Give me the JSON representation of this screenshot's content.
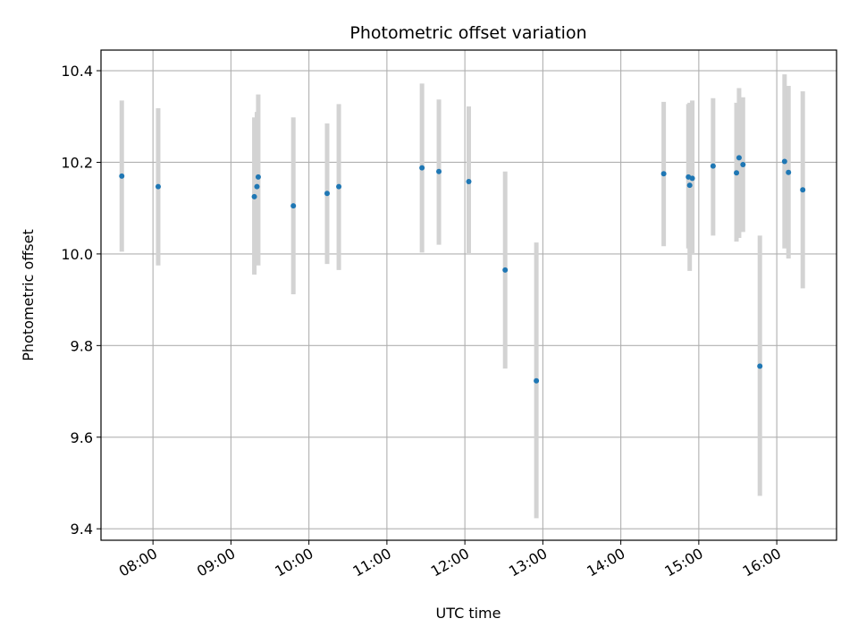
{
  "chart_data": {
    "type": "scatter",
    "title": "Photometric offset variation",
    "xlabel": "UTC time",
    "ylabel": "Photometric offset",
    "x_tick_labels": [
      "08:00",
      "09:00",
      "10:00",
      "11:00",
      "12:00",
      "13:00",
      "14:00",
      "15:00",
      "16:00"
    ],
    "x_ticks": [
      "08:00",
      "09:00",
      "10:00",
      "11:00",
      "12:00",
      "13:00",
      "14:00",
      "15:00",
      "16:00"
    ],
    "y_tick_labels": [
      "9.4",
      "9.6",
      "9.8",
      "10.0",
      "10.2",
      "10.4"
    ],
    "y_ticks": [
      9.4,
      9.6,
      9.8,
      10.0,
      10.2,
      10.4
    ],
    "xlim": [
      "07:20",
      "16:46"
    ],
    "ylim": [
      9.375,
      10.445
    ],
    "grid": true,
    "marker_color": "#1f77b4",
    "errorbar_color": "#d3d3d3",
    "series": [
      {
        "points": [
          {
            "x": "07:36",
            "y": 10.17,
            "ylow": 10.005,
            "yhigh": 10.335
          },
          {
            "x": "08:04",
            "y": 10.147,
            "ylow": 9.975,
            "yhigh": 10.318
          },
          {
            "x": "09:18",
            "y": 10.125,
            "ylow": 9.955,
            "yhigh": 10.298
          },
          {
            "x": "09:20",
            "y": 10.147,
            "ylow": 9.985,
            "yhigh": 10.31
          },
          {
            "x": "09:21",
            "y": 10.168,
            "ylow": 9.975,
            "yhigh": 10.348
          },
          {
            "x": "09:48",
            "y": 10.105,
            "ylow": 9.912,
            "yhigh": 10.298
          },
          {
            "x": "10:14",
            "y": 10.132,
            "ylow": 9.978,
            "yhigh": 10.285
          },
          {
            "x": "10:23",
            "y": 10.147,
            "ylow": 9.965,
            "yhigh": 10.327
          },
          {
            "x": "11:27",
            "y": 10.188,
            "ylow": 10.003,
            "yhigh": 10.372
          },
          {
            "x": "11:40",
            "y": 10.18,
            "ylow": 10.02,
            "yhigh": 10.337
          },
          {
            "x": "12:03",
            "y": 10.158,
            "ylow": 9.998,
            "yhigh": 10.322
          },
          {
            "x": "12:31",
            "y": 9.965,
            "ylow": 9.75,
            "yhigh": 10.18
          },
          {
            "x": "12:55",
            "y": 9.723,
            "ylow": 9.423,
            "yhigh": 10.025
          },
          {
            "x": "14:33",
            "y": 10.175,
            "ylow": 10.017,
            "yhigh": 10.332
          },
          {
            "x": "14:52",
            "y": 10.168,
            "ylow": 10.012,
            "yhigh": 10.327
          },
          {
            "x": "14:53",
            "y": 10.15,
            "ylow": 9.963,
            "yhigh": 10.33
          },
          {
            "x": "14:55",
            "y": 10.165,
            "ylow": 9.998,
            "yhigh": 10.335
          },
          {
            "x": "15:11",
            "y": 10.192,
            "ylow": 10.04,
            "yhigh": 10.34
          },
          {
            "x": "15:29",
            "y": 10.177,
            "ylow": 10.027,
            "yhigh": 10.33
          },
          {
            "x": "15:31",
            "y": 10.21,
            "ylow": 10.035,
            "yhigh": 10.362
          },
          {
            "x": "15:34",
            "y": 10.195,
            "ylow": 10.048,
            "yhigh": 10.342
          },
          {
            "x": "15:47",
            "y": 9.755,
            "ylow": 9.472,
            "yhigh": 10.04
          },
          {
            "x": "16:06",
            "y": 10.202,
            "ylow": 10.012,
            "yhigh": 10.392
          },
          {
            "x": "16:09",
            "y": 10.178,
            "ylow": 9.99,
            "yhigh": 10.367
          },
          {
            "x": "16:20",
            "y": 10.14,
            "ylow": 9.925,
            "yhigh": 10.355
          }
        ]
      }
    ]
  }
}
